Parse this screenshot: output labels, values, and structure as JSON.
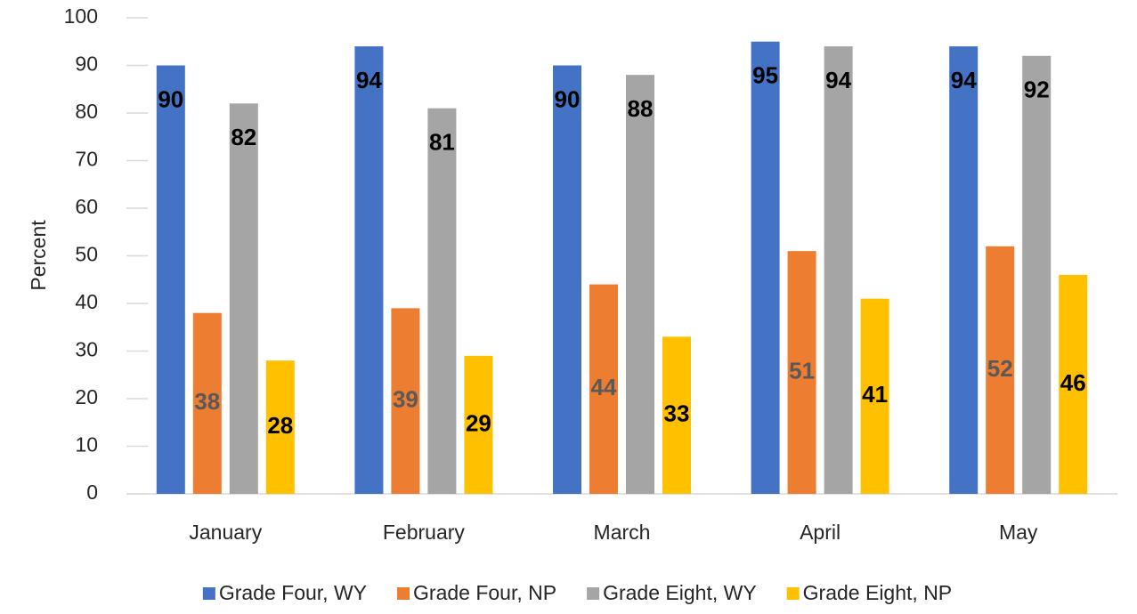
{
  "chart_data": {
    "type": "bar",
    "y_label": "Percent",
    "categories": [
      "January",
      "February",
      "March",
      "April",
      "May"
    ],
    "series": [
      {
        "name": "Grade Four, WY",
        "color": "#4472c4",
        "label_color": "#000000",
        "label_position": "inside_end",
        "values": [
          90,
          94,
          90,
          95,
          94
        ]
      },
      {
        "name": "Grade Four, NP",
        "color": "#ed7d31",
        "label_color": "#595959",
        "label_position": "center",
        "values": [
          38,
          39,
          44,
          51,
          52
        ]
      },
      {
        "name": "Grade Eight, WY",
        "color": "#a5a5a5",
        "label_color": "#000000",
        "label_position": "inside_end",
        "values": [
          82,
          81,
          88,
          94,
          92
        ]
      },
      {
        "name": "Grade Eight, NP",
        "color": "#ffc000",
        "label_color": "#000000",
        "label_position": "center",
        "values": [
          28,
          29,
          33,
          41,
          46
        ]
      }
    ],
    "ylim": [
      0,
      100
    ],
    "yticks": [
      0,
      10,
      20,
      30,
      40,
      50,
      60,
      70,
      80,
      90,
      100
    ],
    "grid": false,
    "legend": "bottom"
  }
}
